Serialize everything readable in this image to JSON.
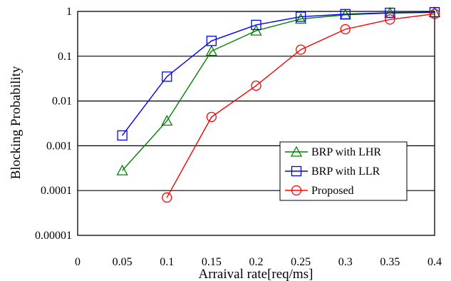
{
  "chart_data": {
    "type": "line",
    "xlabel": "Arraival rate[req/ms]",
    "ylabel": "Blocking Probability",
    "y_scale": "log",
    "xlim": [
      0,
      0.4
    ],
    "ylim": [
      1e-05,
      1
    ],
    "grid": "horizontal",
    "legend_position": "bottom-right",
    "x_tick_labels": [
      "0",
      "0.05",
      "0.1",
      "0.15",
      "0.2",
      "0.25",
      "0.3",
      "0.35",
      "0.4"
    ],
    "x_tick_values": [
      0,
      0.05,
      0.1,
      0.15,
      0.2,
      0.25,
      0.3,
      0.35,
      0.4
    ],
    "y_tick_labels": [
      "0.00001",
      "0.0001",
      "0.001",
      "0.01",
      "0.1",
      "1"
    ],
    "y_tick_values": [
      1e-05,
      0.0001,
      0.001,
      0.01,
      0.1,
      1
    ],
    "series": [
      {
        "name": "BRP with LHR",
        "color": "#008000",
        "marker": "triangle",
        "x": [
          0.05,
          0.1,
          0.15,
          0.2,
          0.25,
          0.3,
          0.35,
          0.4
        ],
        "values": [
          0.00028,
          0.0036,
          0.13,
          0.37,
          0.68,
          0.84,
          0.92,
          0.95
        ]
      },
      {
        "name": "BRP with LLR",
        "color": "#0000ff",
        "marker": "square",
        "x": [
          0.05,
          0.1,
          0.15,
          0.2,
          0.25,
          0.3,
          0.35,
          0.4
        ],
        "values": [
          0.0017,
          0.035,
          0.22,
          0.5,
          0.76,
          0.87,
          0.93,
          0.96
        ]
      },
      {
        "name": "Proposed",
        "color": "#ff0000",
        "marker": "circle",
        "x": [
          0.1,
          0.15,
          0.2,
          0.25,
          0.3,
          0.35,
          0.4
        ],
        "values": [
          7e-05,
          0.0044,
          0.022,
          0.14,
          0.4,
          0.66,
          0.88
        ]
      }
    ]
  }
}
